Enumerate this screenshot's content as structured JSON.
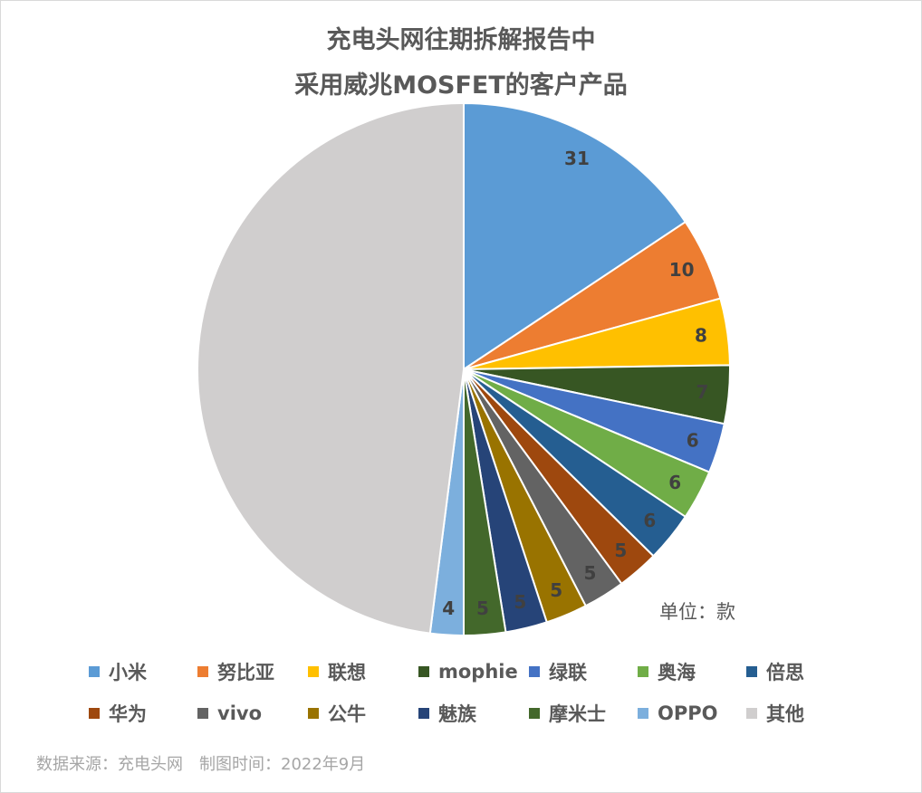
{
  "chart_data": {
    "type": "pie",
    "title": "充电头网往期拆解报告中",
    "subtitle": "采用威兆MOSFET的客户产品",
    "unit_note": "单位：款",
    "slices": [
      {
        "name": "小米",
        "value": 31,
        "color": "#5b9bd5"
      },
      {
        "name": "努比亚",
        "value": 10,
        "color": "#ed7d31"
      },
      {
        "name": "联想",
        "value": 8,
        "color": "#ffc000"
      },
      {
        "name": "mophie",
        "value": 7,
        "color": "#375623"
      },
      {
        "name": "绿联",
        "value": 6,
        "color": "#4472c4"
      },
      {
        "name": "奥海",
        "value": 6,
        "color": "#70ad47"
      },
      {
        "name": "倍思",
        "value": 6,
        "color": "#255e91"
      },
      {
        "name": "华为",
        "value": 5,
        "color": "#9e480e"
      },
      {
        "name": "vivo",
        "value": 5,
        "color": "#636363"
      },
      {
        "name": "公牛",
        "value": 5,
        "color": "#997300"
      },
      {
        "name": "魅族",
        "value": 5,
        "color": "#264478"
      },
      {
        "name": "摩米士",
        "value": 5,
        "color": "#43682b"
      },
      {
        "name": "OPPO",
        "value": 4,
        "color": "#7cafdd"
      },
      {
        "name": "其他",
        "value": 95,
        "color": "#d0cece"
      }
    ],
    "legend_position": "bottom",
    "source_note": "数据来源：充电头网　制图时间：2022年9月"
  }
}
